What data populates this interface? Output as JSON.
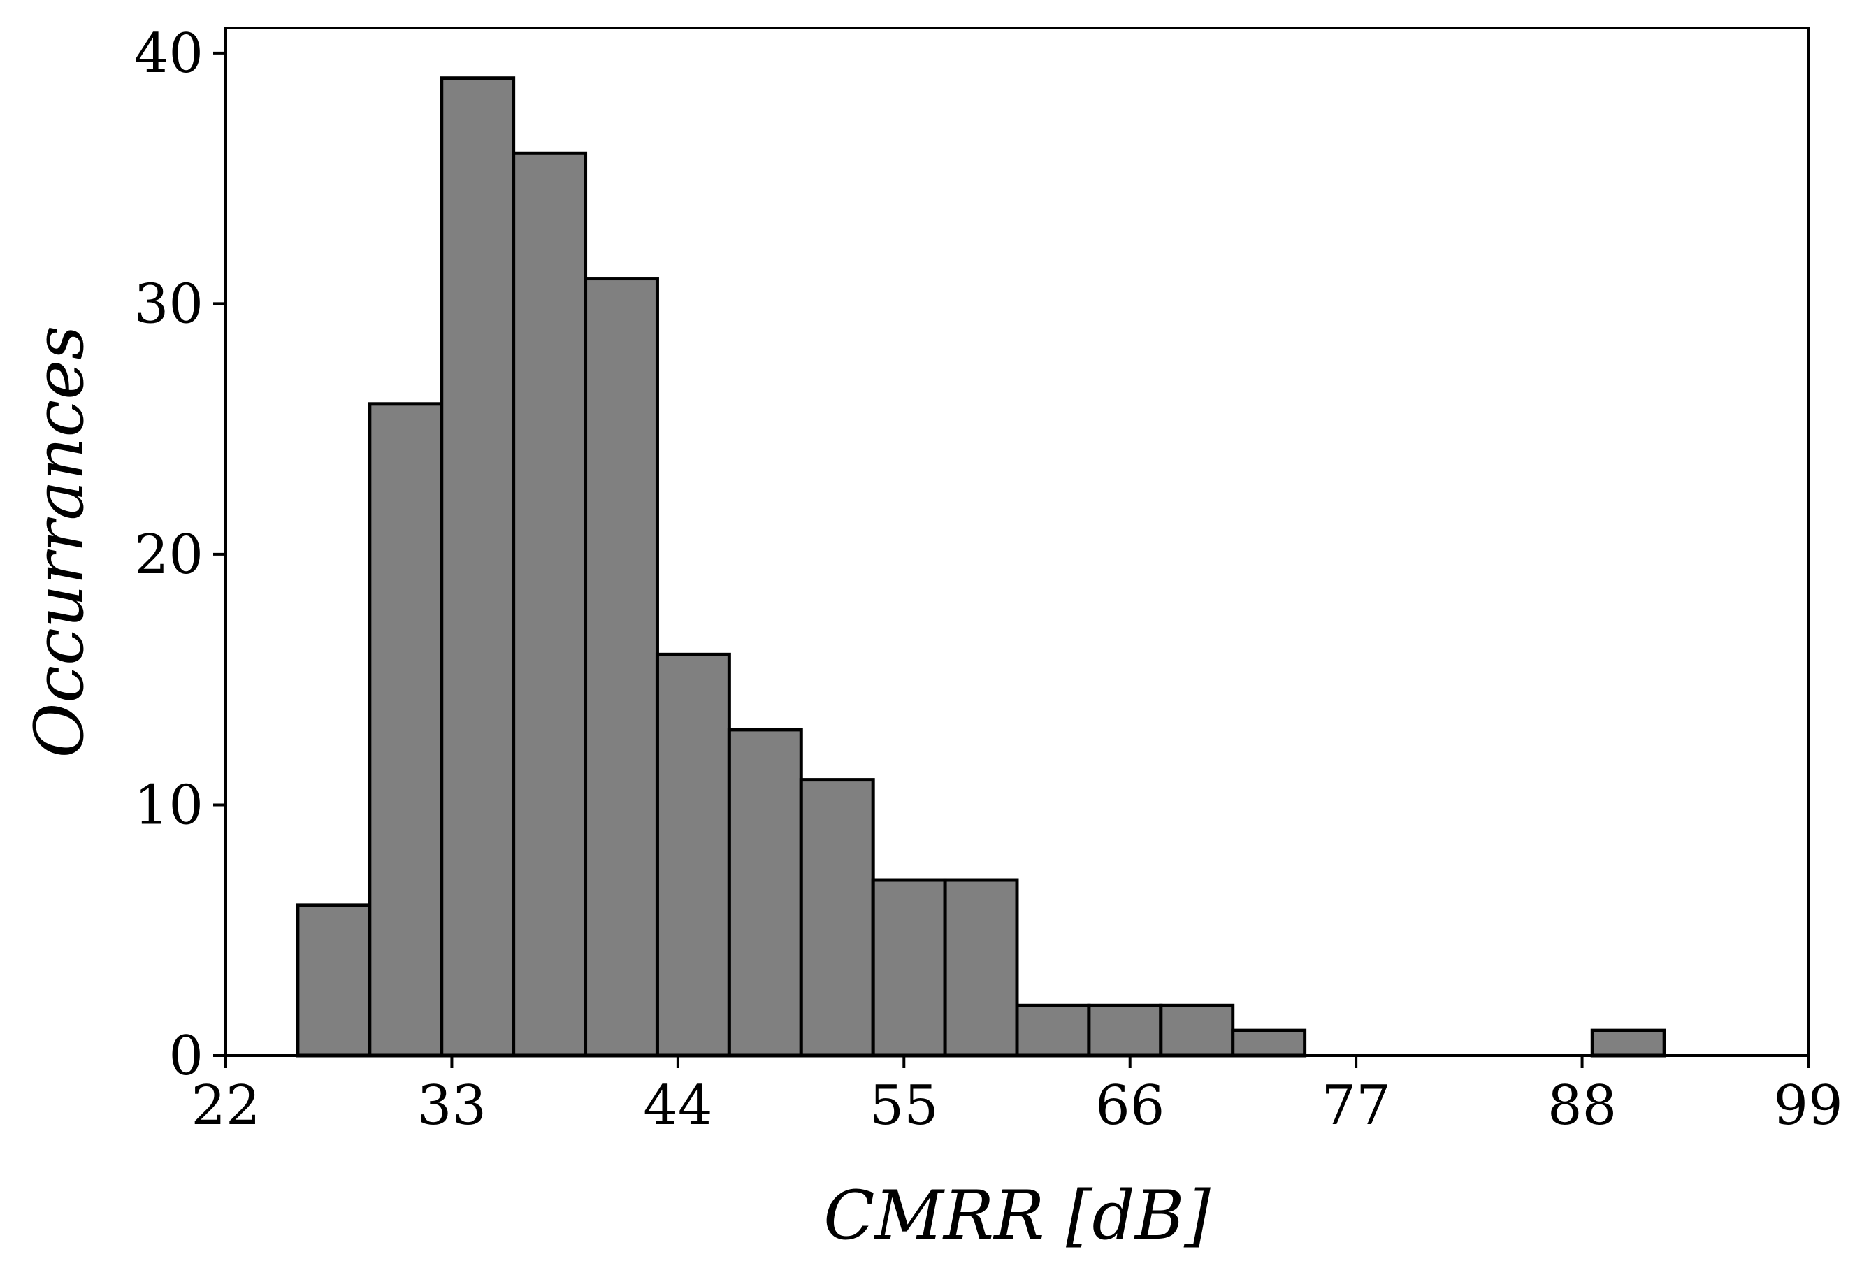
{
  "chart_data": {
    "type": "bar",
    "title": "",
    "xlabel": "CMRR [dB]",
    "ylabel": "Occurrances",
    "xlim": [
      22,
      99
    ],
    "ylim": [
      0,
      41
    ],
    "x_ticks": [
      22,
      33,
      44,
      55,
      66,
      77,
      88,
      99
    ],
    "y_ticks": [
      0,
      10,
      20,
      30,
      40
    ],
    "grid": false,
    "legend": "none",
    "bin_width": 3.5,
    "bins": [
      {
        "start": 25.5,
        "end": 29.0,
        "count": 6
      },
      {
        "start": 29.0,
        "end": 32.5,
        "count": 26
      },
      {
        "start": 32.5,
        "end": 36.0,
        "count": 39
      },
      {
        "start": 36.0,
        "end": 39.5,
        "count": 36
      },
      {
        "start": 39.5,
        "end": 43.0,
        "count": 31
      },
      {
        "start": 43.0,
        "end": 46.5,
        "count": 16
      },
      {
        "start": 46.5,
        "end": 50.0,
        "count": 13
      },
      {
        "start": 50.0,
        "end": 53.5,
        "count": 11
      },
      {
        "start": 53.5,
        "end": 57.0,
        "count": 7
      },
      {
        "start": 57.0,
        "end": 60.5,
        "count": 7
      },
      {
        "start": 60.5,
        "end": 64.0,
        "count": 2
      },
      {
        "start": 64.0,
        "end": 67.5,
        "count": 2
      },
      {
        "start": 67.5,
        "end": 71.0,
        "count": 2
      },
      {
        "start": 71.0,
        "end": 74.5,
        "count": 1
      },
      {
        "start": 74.5,
        "end": 78.0,
        "count": 0
      },
      {
        "start": 78.0,
        "end": 81.5,
        "count": 0
      },
      {
        "start": 81.5,
        "end": 85.0,
        "count": 0
      },
      {
        "start": 85.0,
        "end": 88.5,
        "count": 0
      },
      {
        "start": 88.5,
        "end": 92.0,
        "count": 1
      }
    ],
    "colors": {
      "bar_fill": "#808080",
      "bar_edge": "#000000",
      "axis": "#000000",
      "background": "#ffffff"
    }
  }
}
